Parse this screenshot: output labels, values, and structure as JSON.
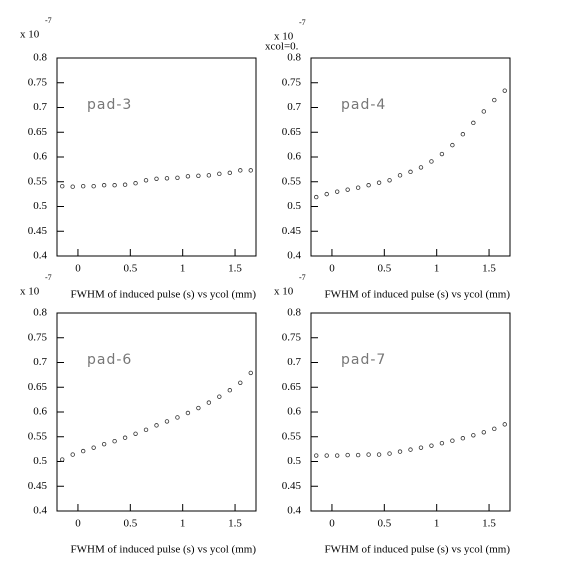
{
  "chart_data": [
    {
      "type": "scatter",
      "title": "FWHM of induced pulse (s) vs ycol (mm)",
      "annotation": "pad-3",
      "scale_label": "x 10",
      "scale_exponent": "-7",
      "x": [
        -0.15,
        -0.05,
        0.05,
        0.15,
        0.25,
        0.35,
        0.45,
        0.55,
        0.65,
        0.75,
        0.85,
        0.95,
        1.05,
        1.15,
        1.25,
        1.35,
        1.45,
        1.55,
        1.65
      ],
      "values": [
        0.541,
        0.54,
        0.541,
        0.541,
        0.543,
        0.543,
        0.544,
        0.547,
        0.553,
        0.556,
        0.557,
        0.558,
        0.561,
        0.562,
        0.563,
        0.566,
        0.568,
        0.573,
        0.573
      ],
      "color": "#333333",
      "xlim": [
        -0.2,
        1.7
      ],
      "ylim": [
        0.4,
        0.8
      ],
      "xticks": [
        0,
        0.5,
        1,
        1.5
      ],
      "yticks": [
        0.4,
        0.45,
        0.5,
        0.55,
        0.6,
        0.65,
        0.7,
        0.75,
        0.8
      ]
    },
    {
      "type": "scatter",
      "title": "FWHM of induced pulse (s) vs ycol (mm)",
      "annotation": "pad-4",
      "scale_label": "x 10",
      "scale_exponent": "-7",
      "note": "xcol=0.",
      "x": [
        -0.15,
        -0.05,
        0.05,
        0.15,
        0.25,
        0.35,
        0.45,
        0.55,
        0.65,
        0.75,
        0.85,
        0.95,
        1.05,
        1.15,
        1.25,
        1.35,
        1.45,
        1.55,
        1.65
      ],
      "values": [
        0.519,
        0.525,
        0.53,
        0.534,
        0.538,
        0.543,
        0.548,
        0.553,
        0.563,
        0.57,
        0.579,
        0.591,
        0.606,
        0.624,
        0.646,
        0.669,
        0.692,
        0.715,
        0.734
      ],
      "color": "#333333",
      "xlim": [
        -0.2,
        1.7
      ],
      "ylim": [
        0.4,
        0.8
      ],
      "xticks": [
        0,
        0.5,
        1,
        1.5
      ],
      "yticks": [
        0.4,
        0.45,
        0.5,
        0.55,
        0.6,
        0.65,
        0.7,
        0.75,
        0.8
      ]
    },
    {
      "type": "scatter",
      "title": "FWHM of induced pulse (s) vs ycol (mm)",
      "annotation": "pad-6",
      "scale_label": "x 10",
      "scale_exponent": "-7",
      "x": [
        -0.15,
        -0.05,
        0.05,
        0.15,
        0.25,
        0.35,
        0.45,
        0.55,
        0.65,
        0.75,
        0.85,
        0.95,
        1.05,
        1.15,
        1.25,
        1.35,
        1.45,
        1.55,
        1.65
      ],
      "values": [
        0.504,
        0.514,
        0.521,
        0.528,
        0.535,
        0.541,
        0.548,
        0.556,
        0.564,
        0.573,
        0.581,
        0.589,
        0.598,
        0.608,
        0.619,
        0.631,
        0.644,
        0.659,
        0.679
      ],
      "color": "#333333",
      "xlim": [
        -0.2,
        1.7
      ],
      "ylim": [
        0.4,
        0.8
      ],
      "xticks": [
        0,
        0.5,
        1,
        1.5
      ],
      "yticks": [
        0.4,
        0.45,
        0.5,
        0.55,
        0.6,
        0.65,
        0.7,
        0.75,
        0.8
      ]
    },
    {
      "type": "scatter",
      "title": "FWHM of induced pulse (s) vs ycol (mm)",
      "annotation": "pad-7",
      "scale_label": "x 10",
      "scale_exponent": "-7",
      "x": [
        -0.15,
        -0.05,
        0.05,
        0.15,
        0.25,
        0.35,
        0.45,
        0.55,
        0.65,
        0.75,
        0.85,
        0.95,
        1.05,
        1.15,
        1.25,
        1.35,
        1.45,
        1.55,
        1.65
      ],
      "values": [
        0.512,
        0.512,
        0.512,
        0.513,
        0.513,
        0.514,
        0.514,
        0.516,
        0.52,
        0.524,
        0.528,
        0.532,
        0.537,
        0.542,
        0.547,
        0.553,
        0.559,
        0.566,
        0.575
      ],
      "color": "#333333",
      "xlim": [
        -0.2,
        1.7
      ],
      "ylim": [
        0.4,
        0.8
      ],
      "xticks": [
        0,
        0.5,
        1,
        1.5
      ],
      "yticks": [
        0.4,
        0.45,
        0.5,
        0.55,
        0.6,
        0.65,
        0.7,
        0.75,
        0.8
      ]
    }
  ]
}
